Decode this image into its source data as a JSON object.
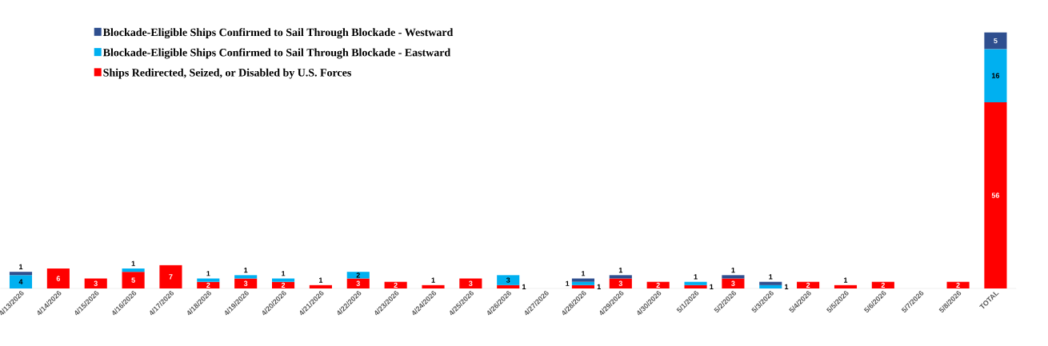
{
  "chart_data": {
    "type": "bar",
    "stacked": true,
    "data_labels": true,
    "legend": "top left",
    "categories": [
      "4/13/2026",
      "4/14/2026",
      "4/15/2026",
      "4/16/2026",
      "4/17/2026",
      "4/18/2026",
      "4/19/2026",
      "4/20/2026",
      "4/21/2026",
      "4/22/2026",
      "4/23/2026",
      "4/24/2026",
      "4/25/2026",
      "4/26/2026",
      "4/27/2026",
      "4/28/2026",
      "4/29/2026",
      "4/30/2026",
      "5/1/2026",
      "5/2/2026",
      "5/3/2026",
      "5/4/2026",
      "5/5/2026",
      "5/6/2026",
      "5/7/2026",
      "5/8/2026",
      "TOTAL"
    ],
    "series": [
      {
        "name": "Ships Redirected, Seized, or Disabled by U.S. Forces",
        "color": "#ff0000",
        "values": [
          null,
          6,
          3,
          5,
          7,
          2,
          3,
          2,
          1,
          3,
          2,
          1,
          3,
          1,
          null,
          1,
          3,
          2,
          1,
          3,
          null,
          2,
          1,
          2,
          null,
          2,
          56
        ]
      },
      {
        "name": "Blockade-Eligible Ships Confirmed to Sail Through Blockade - Eastward",
        "color": "#00b0f0",
        "values": [
          4,
          null,
          null,
          1,
          null,
          1,
          1,
          1,
          null,
          2,
          null,
          null,
          null,
          3,
          null,
          1,
          null,
          null,
          1,
          null,
          1,
          null,
          null,
          null,
          null,
          null,
          16
        ]
      },
      {
        "name": "Blockade-Eligible Ships Confirmed to Sail Through Blockade - Westward",
        "color": "#2f4f8f",
        "values": [
          1,
          null,
          null,
          null,
          null,
          null,
          null,
          null,
          null,
          null,
          null,
          null,
          null,
          null,
          null,
          1,
          1,
          null,
          null,
          1,
          1,
          null,
          null,
          null,
          null,
          null,
          5
        ]
      }
    ]
  }
}
